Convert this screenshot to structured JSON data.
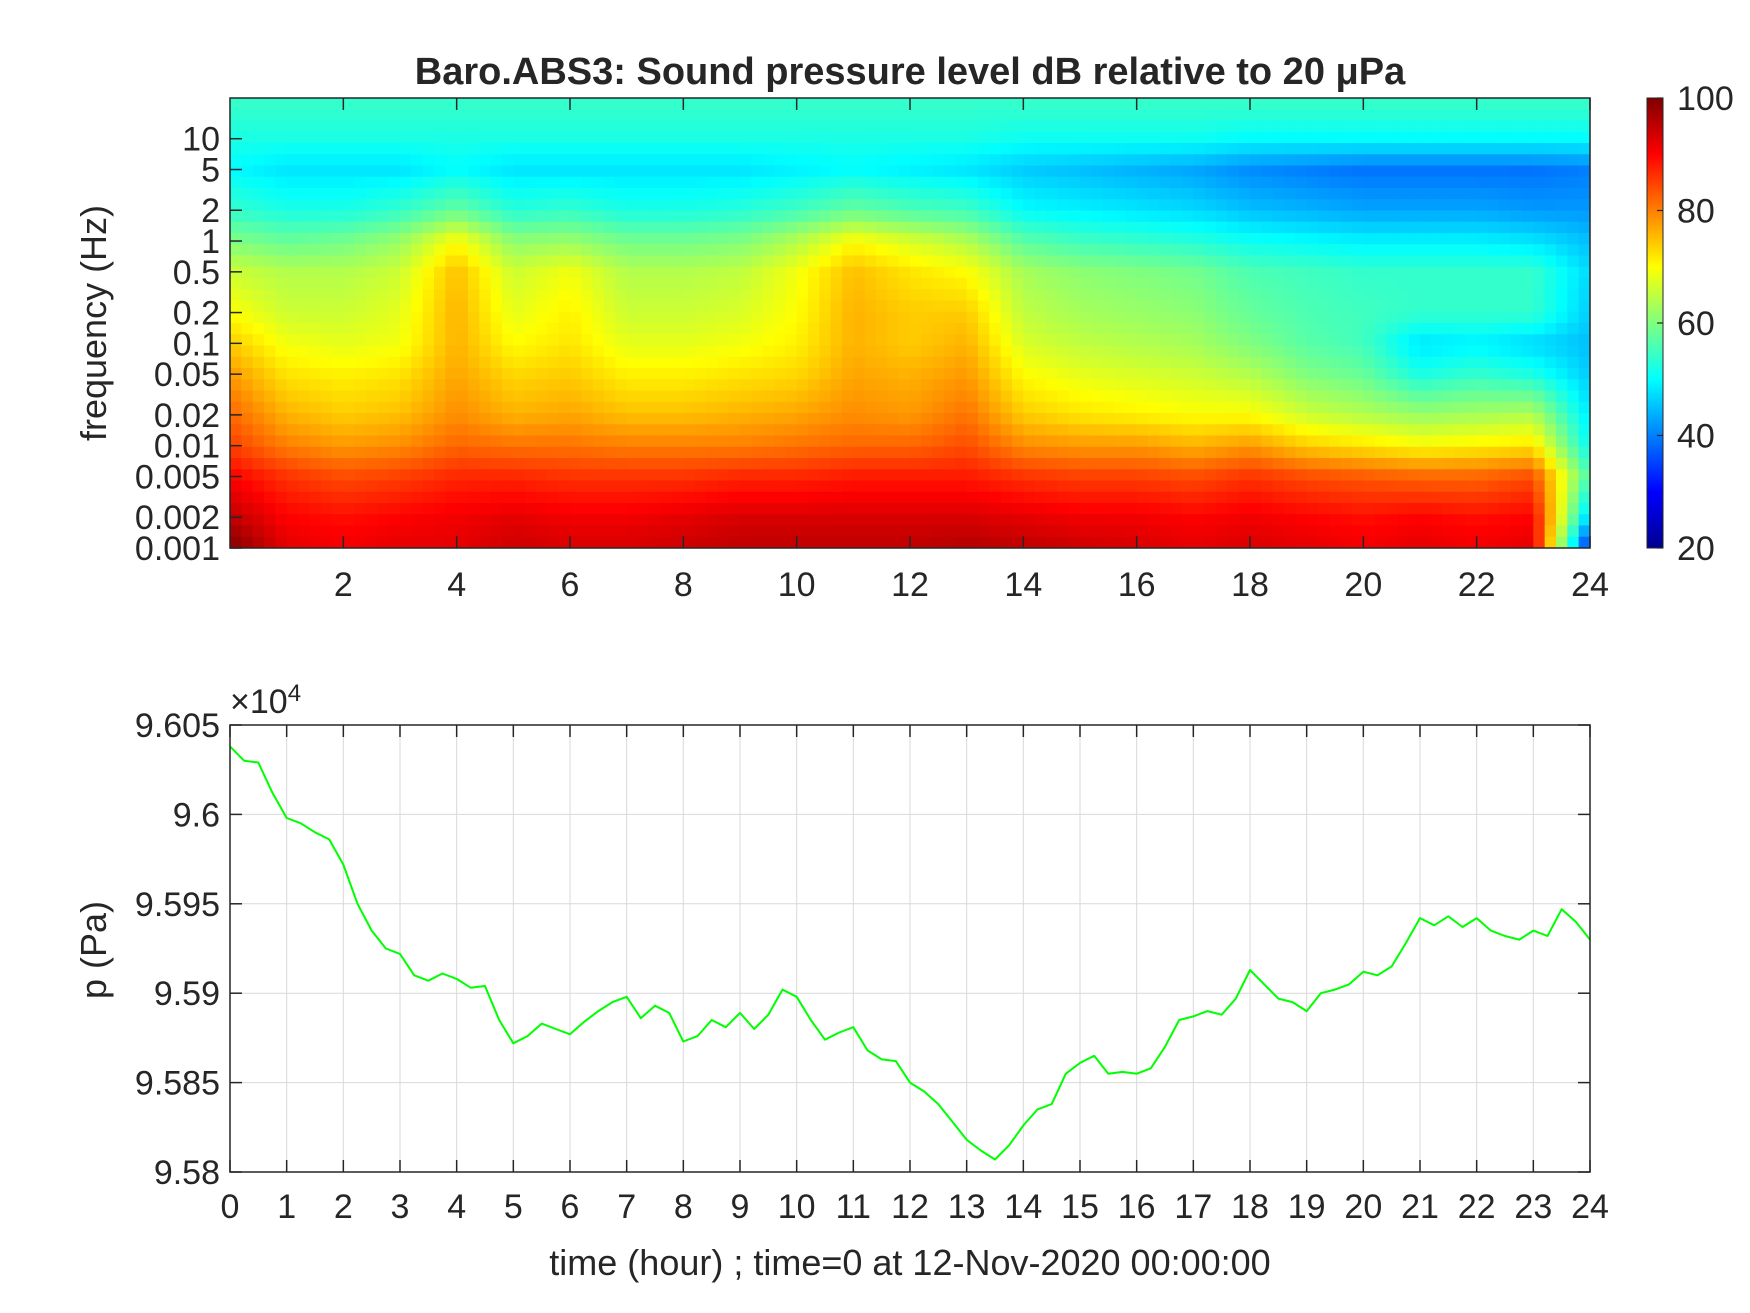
{
  "chart_data": [
    {
      "type": "heatmap",
      "title": "Baro.ABS3: Sound pressure level dB relative to 20 μPa",
      "xlabel": "",
      "ylabel": "frequency (Hz)",
      "x_scale": "linear",
      "y_scale": "log",
      "xlim": [
        0,
        24
      ],
      "ylim": [
        0.001,
        25
      ],
      "xticks": [
        2,
        4,
        6,
        8,
        10,
        12,
        14,
        16,
        18,
        20,
        22,
        24
      ],
      "yticks": [
        0.001,
        0.002,
        0.005,
        0.01,
        0.02,
        0.05,
        0.1,
        0.2,
        0.5,
        1,
        2,
        5,
        10
      ],
      "ytick_labels": [
        "0.001",
        "0.002",
        "0.005",
        "0.01",
        "0.02",
        "0.05",
        "0.1",
        "0.2",
        "0.5",
        "1",
        "2",
        "5",
        "10"
      ],
      "colorbar": {
        "ticks": [
          20,
          40,
          60,
          80,
          100
        ],
        "clim": [
          20,
          100
        ],
        "colormap": "jet",
        "unit": "dB"
      },
      "x_hours": [
        0,
        1,
        2,
        3,
        4,
        5,
        6,
        7,
        8,
        9,
        10,
        11,
        12,
        13,
        14,
        15,
        16,
        17,
        18,
        19,
        20,
        21,
        22,
        23,
        24
      ],
      "freq_hz": [
        0.001,
        0.002,
        0.005,
        0.01,
        0.02,
        0.05,
        0.1,
        0.2,
        0.5,
        1,
        2,
        5,
        10,
        20
      ],
      "values_db": [
        [
          100,
          95,
          90,
          85,
          82,
          78,
          74,
          70,
          66,
          60,
          54,
          50,
          52,
          54
        ],
        [
          92,
          90,
          86,
          80,
          76,
          72,
          69,
          66,
          64,
          58,
          52,
          48,
          52,
          54
        ],
        [
          91,
          89,
          84,
          78,
          74,
          71,
          68,
          66,
          64,
          59,
          52,
          48,
          52,
          54
        ],
        [
          92,
          90,
          85,
          79,
          75,
          72,
          69,
          68,
          66,
          62,
          54,
          48,
          52,
          54
        ],
        [
          92,
          91,
          87,
          82,
          79,
          77,
          76,
          76,
          75,
          70,
          58,
          50,
          52,
          54
        ],
        [
          94,
          92,
          87,
          81,
          76,
          73,
          70,
          68,
          66,
          61,
          53,
          48,
          52,
          54
        ],
        [
          93,
          91,
          86,
          81,
          77,
          74,
          72,
          71,
          69,
          62,
          54,
          48,
          52,
          54
        ],
        [
          93,
          91,
          86,
          80,
          75,
          71,
          68,
          66,
          64,
          59,
          52,
          48,
          52,
          54
        ],
        [
          94,
          92,
          86,
          80,
          75,
          71,
          68,
          66,
          64,
          59,
          52,
          48,
          52,
          54
        ],
        [
          95,
          93,
          87,
          80,
          76,
          72,
          69,
          67,
          65,
          60,
          53,
          48,
          52,
          54
        ],
        [
          95,
          93,
          87,
          81,
          77,
          73,
          71,
          70,
          69,
          64,
          55,
          49,
          52,
          54
        ],
        [
          95,
          93,
          88,
          82,
          79,
          77,
          76,
          76,
          75,
          70,
          58,
          50,
          52,
          54
        ],
        [
          95,
          93,
          88,
          82,
          78,
          76,
          74,
          74,
          72,
          67,
          56,
          49,
          52,
          54
        ],
        [
          96,
          93,
          88,
          84,
          81,
          78,
          76,
          74,
          70,
          64,
          55,
          48,
          52,
          54
        ],
        [
          95,
          92,
          86,
          79,
          74,
          70,
          67,
          65,
          63,
          57,
          50,
          46,
          51,
          54
        ],
        [
          94,
          91,
          85,
          78,
          72,
          68,
          65,
          63,
          61,
          55,
          49,
          45,
          51,
          54
        ],
        [
          93,
          91,
          85,
          78,
          71,
          67,
          64,
          62,
          60,
          54,
          48,
          44,
          51,
          54
        ],
        [
          92,
          90,
          84,
          76,
          70,
          66,
          63,
          61,
          59,
          53,
          47,
          43,
          51,
          54
        ],
        [
          93,
          91,
          86,
          78,
          70,
          64,
          60,
          58,
          56,
          51,
          45,
          41,
          50,
          54
        ],
        [
          92,
          90,
          84,
          74,
          66,
          60,
          57,
          56,
          55,
          50,
          44,
          40,
          50,
          54
        ],
        [
          91,
          89,
          83,
          72,
          64,
          58,
          55,
          55,
          54,
          49,
          43,
          39,
          50,
          54
        ],
        [
          92,
          90,
          82,
          70,
          62,
          52,
          48,
          54,
          54,
          49,
          43,
          39,
          50,
          54
        ],
        [
          91,
          89,
          82,
          71,
          63,
          54,
          49,
          54,
          54,
          49,
          43,
          39,
          50,
          54
        ],
        [
          92,
          90,
          84,
          72,
          64,
          52,
          47,
          54,
          54,
          48,
          42,
          39,
          50,
          54
        ],
        [
          30,
          45,
          55,
          50,
          48,
          46,
          45,
          46,
          47,
          45,
          42,
          40,
          50,
          54
        ]
      ]
    },
    {
      "type": "line",
      "title": "",
      "xlabel": "time (hour) ; time=0 at 12-Nov-2020 00:00:00",
      "ylabel": "p (Pa)",
      "exponent_label": "×10",
      "exponent_power": "4",
      "xlim": [
        0,
        24
      ],
      "ylim": [
        95800,
        96050
      ],
      "xticks": [
        0,
        1,
        2,
        3,
        4,
        5,
        6,
        7,
        8,
        9,
        10,
        11,
        12,
        13,
        14,
        15,
        16,
        17,
        18,
        19,
        20,
        21,
        22,
        23,
        24
      ],
      "yticks": [
        95800,
        95850,
        95900,
        95950,
        96000,
        96050
      ],
      "ytick_labels": [
        "9.58",
        "9.585",
        "9.59",
        "9.595",
        "9.6",
        "9.605"
      ],
      "grid": true,
      "line_color": "#00ff00",
      "series": [
        {
          "x": [
            0,
            0.25,
            0.5,
            0.75,
            1.0,
            1.25,
            1.5,
            1.75,
            2.0,
            2.25,
            2.5,
            2.75,
            3.0,
            3.25,
            3.5,
            3.75,
            4.0,
            4.25,
            4.5,
            4.75,
            5.0,
            5.25,
            5.5,
            5.75,
            6.0,
            6.25,
            6.5,
            6.75,
            7.0,
            7.25,
            7.5,
            7.75,
            8.0,
            8.25,
            8.5,
            8.75,
            9.0,
            9.25,
            9.5,
            9.75,
            10.0,
            10.25,
            10.5,
            10.75,
            11.0,
            11.25,
            11.5,
            11.75,
            12.0,
            12.25,
            12.5,
            12.75,
            13.0,
            13.25,
            13.5,
            13.75,
            14.0,
            14.25,
            14.5,
            14.75,
            15.0,
            15.25,
            15.5,
            15.75,
            16.0,
            16.25,
            16.5,
            16.75,
            17.0,
            17.25,
            17.5,
            17.75,
            18.0,
            18.25,
            18.5,
            18.75,
            19.0,
            19.25,
            19.5,
            19.75,
            20.0,
            20.25,
            20.5,
            20.75,
            21.0,
            21.25,
            21.5,
            21.75,
            22.0,
            22.25,
            22.5,
            22.75,
            23.0,
            23.25,
            23.5,
            23.75,
            24.0
          ],
          "y": [
            96038,
            96030,
            96029,
            96012,
            95998,
            95995,
            95990,
            95986,
            95972,
            95950,
            95935,
            95925,
            95922,
            95910,
            95907,
            95911,
            95908,
            95903,
            95904,
            95885,
            95872,
            95876,
            95883,
            95880,
            95877,
            95884,
            95890,
            95895,
            95898,
            95886,
            95893,
            95889,
            95873,
            95876,
            95885,
            95881,
            95889,
            95880,
            95888,
            95902,
            95898,
            95885,
            95874,
            95878,
            95881,
            95868,
            95863,
            95862,
            95850,
            95845,
            95838,
            95828,
            95818,
            95812,
            95807,
            95815,
            95826,
            95835,
            95838,
            95855,
            95861,
            95865,
            95855,
            95856,
            95855,
            95858,
            95870,
            95885,
            95887,
            95890,
            95888,
            95897,
            95913,
            95905,
            95897,
            95895,
            95890,
            95900,
            95902,
            95905,
            95912,
            95910,
            95915,
            95928,
            95942,
            95938,
            95943,
            95937,
            95942,
            95935,
            95932,
            95930,
            95935,
            95932,
            95947,
            95940,
            95930
          ]
        }
      ]
    }
  ]
}
